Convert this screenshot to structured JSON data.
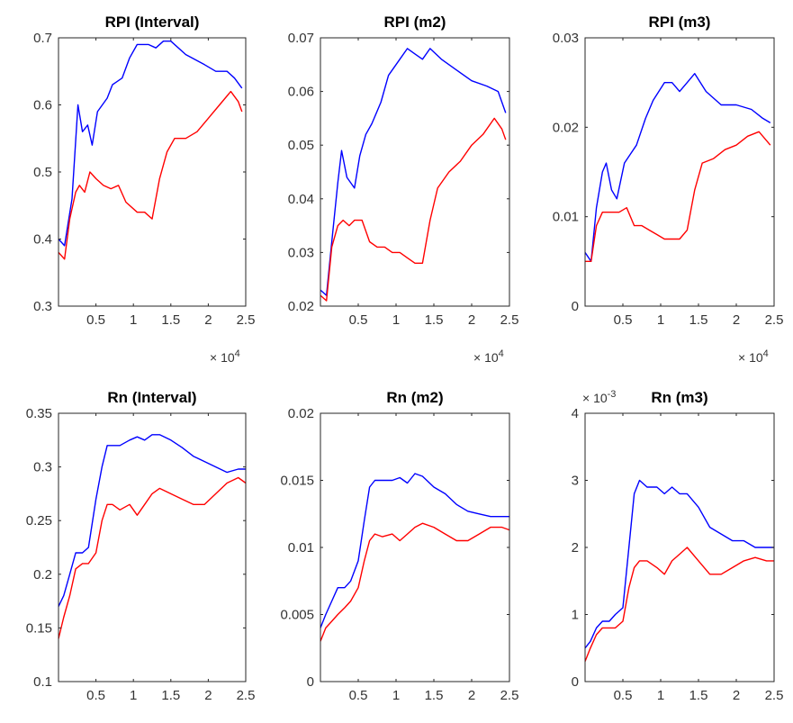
{
  "figure": {
    "x_multiplier": {
      "base": "× 10",
      "exp": "4"
    },
    "colors": {
      "series_a": "#0000ff",
      "series_b": "#ff0000",
      "axes": "#262626"
    }
  },
  "chart_data": [
    {
      "type": "line",
      "title": "RPI (Interval)",
      "xlim": [
        0,
        25000
      ],
      "ylim": [
        0.3,
        0.7
      ],
      "xticks": [
        5000,
        10000,
        15000,
        20000,
        25000
      ],
      "xtick_labels": [
        "0.5",
        "1",
        "1.5",
        "2",
        "2.5"
      ],
      "yticks": [
        0.3,
        0.4,
        0.5,
        0.6,
        0.7
      ],
      "ytick_labels": [
        "0.3",
        "0.4",
        "0.5",
        "0.6",
        "0.7"
      ],
      "y_multiplier": null,
      "grid": false,
      "series": [
        {
          "color": "#0000ff",
          "x": [
            0,
            800,
            1800,
            2600,
            3200,
            3900,
            4500,
            5200,
            6500,
            7200,
            8500,
            9500,
            10500,
            12000,
            13000,
            14000,
            15000,
            17000,
            19500,
            21000,
            22500,
            23500,
            24500
          ],
          "y": [
            0.4,
            0.39,
            0.46,
            0.6,
            0.56,
            0.57,
            0.54,
            0.59,
            0.61,
            0.63,
            0.64,
            0.67,
            0.69,
            0.69,
            0.685,
            0.695,
            0.695,
            0.675,
            0.66,
            0.65,
            0.65,
            0.64,
            0.625
          ]
        },
        {
          "color": "#ff0000",
          "x": [
            0,
            800,
            1500,
            2300,
            2800,
            3500,
            4200,
            5000,
            6000,
            7000,
            8000,
            9000,
            10500,
            11500,
            12500,
            13500,
            14500,
            15500,
            17000,
            18500,
            20000,
            21500,
            23000,
            24000,
            24500
          ],
          "y": [
            0.38,
            0.37,
            0.43,
            0.47,
            0.48,
            0.47,
            0.5,
            0.49,
            0.48,
            0.475,
            0.48,
            0.455,
            0.44,
            0.44,
            0.43,
            0.49,
            0.53,
            0.55,
            0.55,
            0.56,
            0.58,
            0.6,
            0.62,
            0.605,
            0.59
          ]
        }
      ]
    },
    {
      "type": "line",
      "title": "RPI (m2)",
      "xlim": [
        0,
        25000
      ],
      "ylim": [
        0.02,
        0.07
      ],
      "xticks": [
        5000,
        10000,
        15000,
        20000,
        25000
      ],
      "xtick_labels": [
        "0.5",
        "1",
        "1.5",
        "2",
        "2.5"
      ],
      "yticks": [
        0.02,
        0.03,
        0.04,
        0.05,
        0.06,
        0.07
      ],
      "ytick_labels": [
        "0.02",
        "0.03",
        "0.04",
        "0.05",
        "0.06",
        "0.07"
      ],
      "y_multiplier": null,
      "grid": false,
      "series": [
        {
          "color": "#0000ff",
          "x": [
            0,
            800,
            1500,
            2300,
            2800,
            3500,
            4500,
            5200,
            6000,
            6800,
            8000,
            9000,
            10500,
            11500,
            12500,
            13500,
            14500,
            16000,
            18000,
            20000,
            22000,
            23500,
            24500
          ],
          "y": [
            0.023,
            0.022,
            0.032,
            0.043,
            0.049,
            0.044,
            0.042,
            0.048,
            0.052,
            0.054,
            0.058,
            0.063,
            0.066,
            0.068,
            0.067,
            0.066,
            0.068,
            0.066,
            0.064,
            0.062,
            0.061,
            0.06,
            0.056
          ]
        },
        {
          "color": "#ff0000",
          "x": [
            0,
            800,
            1500,
            2300,
            3000,
            3800,
            4500,
            5500,
            6500,
            7500,
            8500,
            9500,
            10500,
            11500,
            12500,
            13500,
            14500,
            15500,
            17000,
            18500,
            20000,
            21500,
            23000,
            24000,
            24500
          ],
          "y": [
            0.022,
            0.021,
            0.031,
            0.035,
            0.036,
            0.035,
            0.036,
            0.036,
            0.032,
            0.031,
            0.031,
            0.03,
            0.03,
            0.029,
            0.028,
            0.028,
            0.036,
            0.042,
            0.045,
            0.047,
            0.05,
            0.052,
            0.055,
            0.053,
            0.051
          ]
        }
      ]
    },
    {
      "type": "line",
      "title": "RPI (m3)",
      "xlim": [
        0,
        25000
      ],
      "ylim": [
        0,
        0.03
      ],
      "xticks": [
        5000,
        10000,
        15000,
        20000,
        25000
      ],
      "xtick_labels": [
        "0.5",
        "1",
        "1.5",
        "2",
        "2.5"
      ],
      "yticks": [
        0,
        0.01,
        0.02,
        0.03
      ],
      "ytick_labels": [
        "0",
        "0.01",
        "0.02",
        "0.03"
      ],
      "y_multiplier": null,
      "grid": false,
      "series": [
        {
          "color": "#0000ff",
          "x": [
            0,
            800,
            1500,
            2300,
            2800,
            3500,
            4200,
            5200,
            6000,
            6800,
            8000,
            9000,
            10500,
            11500,
            12500,
            13500,
            14500,
            16000,
            18000,
            20000,
            22000,
            23500,
            24500
          ],
          "y": [
            0.006,
            0.005,
            0.011,
            0.015,
            0.016,
            0.013,
            0.012,
            0.016,
            0.017,
            0.018,
            0.021,
            0.023,
            0.025,
            0.025,
            0.024,
            0.025,
            0.026,
            0.024,
            0.0225,
            0.0225,
            0.022,
            0.021,
            0.0205
          ]
        },
        {
          "color": "#ff0000",
          "x": [
            0,
            800,
            1500,
            2300,
            3000,
            3800,
            4500,
            5500,
            6500,
            7500,
            8500,
            9500,
            10500,
            11500,
            12500,
            13500,
            14500,
            15500,
            17000,
            18500,
            20000,
            21500,
            23000,
            24000,
            24500
          ],
          "y": [
            0.005,
            0.005,
            0.009,
            0.0105,
            0.0105,
            0.0105,
            0.0105,
            0.011,
            0.009,
            0.009,
            0.0085,
            0.008,
            0.0075,
            0.0075,
            0.0075,
            0.0085,
            0.013,
            0.016,
            0.0165,
            0.0175,
            0.018,
            0.019,
            0.0195,
            0.0185,
            0.018
          ]
        }
      ]
    },
    {
      "type": "line",
      "title": "Rn (Interval)",
      "xlim": [
        0,
        25000
      ],
      "ylim": [
        0.1,
        0.35
      ],
      "xticks": [
        5000,
        10000,
        15000,
        20000,
        25000
      ],
      "xtick_labels": [
        "0.5",
        "1",
        "1.5",
        "2",
        "2.5"
      ],
      "yticks": [
        0.1,
        0.15,
        0.2,
        0.25,
        0.3,
        0.35
      ],
      "ytick_labels": [
        "0.1",
        "0.15",
        "0.2",
        "0.25",
        "0.3",
        "0.35"
      ],
      "y_multiplier": null,
      "grid": false,
      "series": [
        {
          "color": "#0000ff",
          "x": [
            0,
            700,
            1500,
            2300,
            3200,
            4000,
            5000,
            5800,
            6500,
            7200,
            8200,
            9500,
            10500,
            11500,
            12500,
            13500,
            15000,
            16500,
            18000,
            19500,
            21000,
            22500,
            24000,
            25000
          ],
          "y": [
            0.17,
            0.18,
            0.2,
            0.22,
            0.22,
            0.225,
            0.27,
            0.3,
            0.32,
            0.32,
            0.32,
            0.325,
            0.328,
            0.325,
            0.33,
            0.33,
            0.325,
            0.318,
            0.31,
            0.305,
            0.3,
            0.295,
            0.298,
            0.298
          ]
        },
        {
          "color": "#ff0000",
          "x": [
            0,
            700,
            1500,
            2300,
            3200,
            4000,
            5000,
            5800,
            6500,
            7200,
            8200,
            9500,
            10500,
            11500,
            12500,
            13500,
            15000,
            16500,
            18000,
            19500,
            21000,
            22500,
            24000,
            25000
          ],
          "y": [
            0.14,
            0.16,
            0.18,
            0.205,
            0.21,
            0.21,
            0.22,
            0.25,
            0.265,
            0.265,
            0.26,
            0.265,
            0.255,
            0.265,
            0.275,
            0.28,
            0.275,
            0.27,
            0.265,
            0.265,
            0.275,
            0.285,
            0.29,
            0.285
          ]
        }
      ]
    },
    {
      "type": "line",
      "title": "Rn (m2)",
      "xlim": [
        0,
        25000
      ],
      "ylim": [
        0,
        0.02
      ],
      "xticks": [
        5000,
        10000,
        15000,
        20000,
        25000
      ],
      "xtick_labels": [
        "0.5",
        "1",
        "1.5",
        "2",
        "2.5"
      ],
      "yticks": [
        0,
        0.005,
        0.01,
        0.015,
        0.02
      ],
      "ytick_labels": [
        "0",
        "0.005",
        "0.01",
        "0.015",
        "0.02"
      ],
      "y_multiplier": null,
      "grid": false,
      "series": [
        {
          "color": "#0000ff",
          "x": [
            0,
            700,
            1500,
            2300,
            3200,
            4000,
            5000,
            5800,
            6500,
            7200,
            8200,
            9500,
            10500,
            11500,
            12500,
            13500,
            15000,
            16500,
            18000,
            19500,
            21000,
            22500,
            24000,
            25000
          ],
          "y": [
            0.004,
            0.005,
            0.006,
            0.007,
            0.007,
            0.0075,
            0.009,
            0.012,
            0.0145,
            0.015,
            0.015,
            0.015,
            0.0152,
            0.0148,
            0.0155,
            0.0153,
            0.0145,
            0.014,
            0.0132,
            0.0127,
            0.0125,
            0.0123,
            0.0123,
            0.0123
          ]
        },
        {
          "color": "#ff0000",
          "x": [
            0,
            700,
            1500,
            2300,
            3200,
            4000,
            5000,
            5800,
            6500,
            7200,
            8200,
            9500,
            10500,
            11500,
            12500,
            13500,
            15000,
            16500,
            18000,
            19500,
            21000,
            22500,
            24000,
            25000
          ],
          "y": [
            0.003,
            0.004,
            0.0045,
            0.005,
            0.0055,
            0.006,
            0.007,
            0.009,
            0.0105,
            0.011,
            0.0108,
            0.011,
            0.0105,
            0.011,
            0.0115,
            0.0118,
            0.0115,
            0.011,
            0.0105,
            0.0105,
            0.011,
            0.0115,
            0.0115,
            0.0113
          ]
        }
      ]
    },
    {
      "type": "line",
      "title": "Rn (m3)",
      "xlim": [
        0,
        25000
      ],
      "ylim": [
        0,
        0.004
      ],
      "xticks": [
        5000,
        10000,
        15000,
        20000,
        25000
      ],
      "xtick_labels": [
        "0.5",
        "1",
        "1.5",
        "2",
        "2.5"
      ],
      "yticks": [
        0,
        0.001,
        0.002,
        0.003,
        0.004
      ],
      "ytick_labels": [
        "0",
        "1",
        "2",
        "3",
        "4"
      ],
      "y_multiplier": {
        "base": "× 10",
        "exp": "-3"
      },
      "grid": false,
      "series": [
        {
          "color": "#0000ff",
          "x": [
            0,
            700,
            1500,
            2300,
            3200,
            4000,
            5000,
            5800,
            6500,
            7200,
            8200,
            9500,
            10500,
            11500,
            12500,
            13500,
            15000,
            16500,
            18000,
            19500,
            21000,
            22500,
            24000,
            25000
          ],
          "y": [
            0.0005,
            0.0006,
            0.0008,
            0.0009,
            0.0009,
            0.001,
            0.0011,
            0.002,
            0.0028,
            0.003,
            0.0029,
            0.0029,
            0.0028,
            0.0029,
            0.0028,
            0.0028,
            0.0026,
            0.0023,
            0.0022,
            0.0021,
            0.0021,
            0.002,
            0.002,
            0.002
          ]
        },
        {
          "color": "#ff0000",
          "x": [
            0,
            700,
            1500,
            2300,
            3200,
            4000,
            5000,
            5800,
            6500,
            7200,
            8200,
            9500,
            10500,
            11500,
            12500,
            13500,
            15000,
            16500,
            18000,
            19500,
            21000,
            22500,
            24000,
            25000
          ],
          "y": [
            0.0003,
            0.0005,
            0.0007,
            0.0008,
            0.0008,
            0.0008,
            0.0009,
            0.0014,
            0.0017,
            0.0018,
            0.0018,
            0.0017,
            0.0016,
            0.0018,
            0.0019,
            0.002,
            0.0018,
            0.0016,
            0.0016,
            0.0017,
            0.0018,
            0.00185,
            0.0018,
            0.0018
          ]
        }
      ]
    }
  ]
}
